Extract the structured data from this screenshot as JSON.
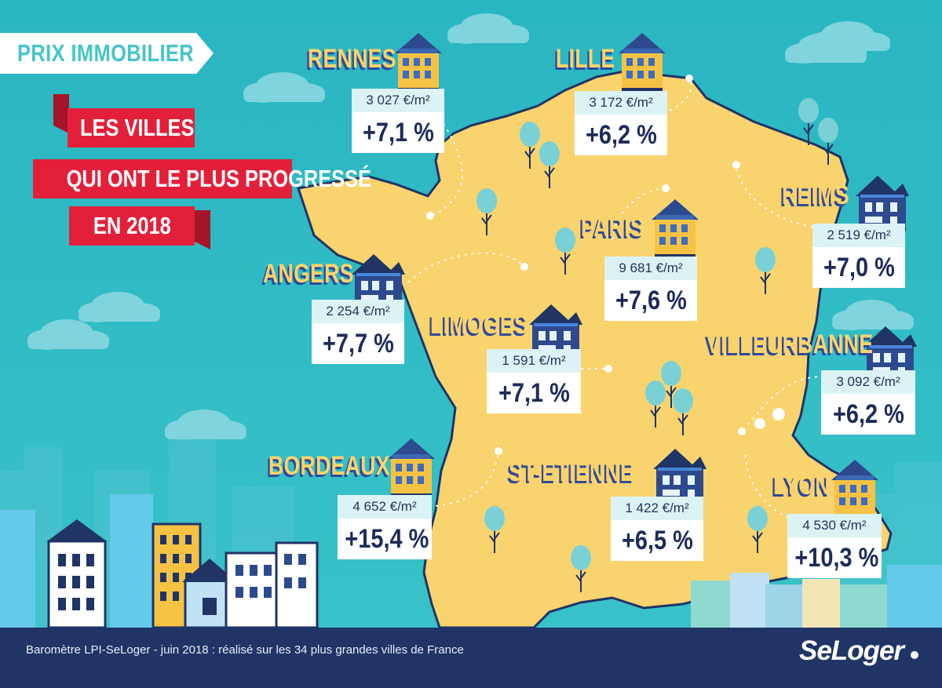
{
  "header": {
    "tag": "PRIX IMMOBILIER",
    "title_lines": [
      "LES VILLES",
      "QUI ONT LE PLUS PROGRESSÉ",
      "EN 2018"
    ]
  },
  "cities": [
    {
      "name": "RENNES",
      "price": "3 027 €/m²",
      "change": "+7,1 %",
      "house_color": "yellow"
    },
    {
      "name": "LILLE",
      "price": "3 172 €/m²",
      "change": "+6,2 %",
      "house_color": "yellow"
    },
    {
      "name": "REIMS",
      "price": "2 519 €/m²",
      "change": "+7,0  %",
      "house_color": "navy"
    },
    {
      "name": "PARIS",
      "price": "9 681 €/m²",
      "change": "+7,6 %",
      "house_color": "yellow"
    },
    {
      "name": "ANGERS",
      "price": "2 254 €/m²",
      "change": "+7,7 %",
      "house_color": "navy"
    },
    {
      "name": "LIMOGES",
      "price": "1 591 €/m²",
      "change": "+7,1 %",
      "house_color": "navy"
    },
    {
      "name": "VILLEURBANNE",
      "price": "3 092 €/m²",
      "change": "+6,2 %",
      "house_color": "navy"
    },
    {
      "name": "BORDEAUX",
      "price": "4 652 €/m²",
      "change": "+15,4 %",
      "house_color": "yellow"
    },
    {
      "name": "ST-ETIENNE",
      "price": "1 422 €/m²",
      "change": "+6,5 %",
      "house_color": "navy"
    },
    {
      "name": "LYON",
      "price": "4 530 €/m²",
      "change": "+10,3 %",
      "house_color": "yellow"
    }
  ],
  "footer": {
    "caption": "Baromètre LPI-SeLoger - juin 2018 : réalisé sur les 34 plus grandes villes de France",
    "logo": "SeLoger"
  },
  "colors": {
    "sea": "#29b9c4",
    "land": "#f9d36e",
    "navy": "#203466",
    "accent_red": "#e3203a",
    "label_yellow": "#fdd36a"
  }
}
